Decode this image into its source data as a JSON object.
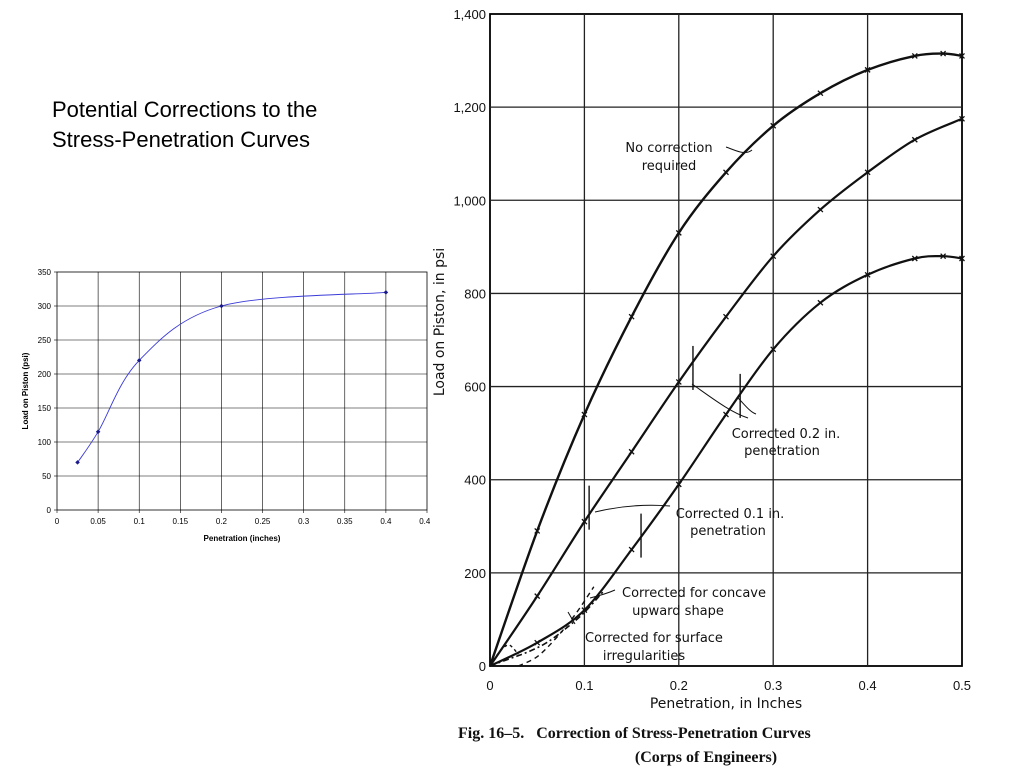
{
  "slide": {
    "title": "Potential Corrections to the\nStress-Penetration Curves"
  },
  "chart_data": [
    {
      "type": "scatter",
      "xlabel": "Penetration (inches)",
      "ylabel": "Load on Piston (psi)",
      "xlim": [
        0,
        0.45
      ],
      "ylim": [
        0,
        350
      ],
      "x_ticks": [
        "0",
        "0.05",
        "0.1",
        "0.15",
        "0.2",
        "0.25",
        "0.3",
        "0.35",
        "0.4",
        "0.45"
      ],
      "y_ticks": [
        "0",
        "50",
        "100",
        "150",
        "200",
        "250",
        "300",
        "350"
      ],
      "grid": true,
      "line_color": "#3a3ad8",
      "marker_color": "#1a1a8c",
      "series": [
        {
          "x": [
            0.025,
            0.05,
            0.1,
            0.2,
            0.4
          ],
          "y": [
            70,
            115,
            220,
            300,
            320
          ]
        }
      ]
    },
    {
      "type": "line",
      "xlabel": "Penetration, in Inches",
      "ylabel": "Load on Piston, in psi",
      "xlim": [
        0,
        0.5
      ],
      "ylim": [
        0,
        1400
      ],
      "x_ticks": [
        "0",
        "0.1",
        "0.2",
        "0.3",
        "0.4",
        "0.5"
      ],
      "y_ticks": [
        "0",
        "200",
        "400",
        "600",
        "800",
        "1,000",
        "1,200",
        "1,400"
      ],
      "grid": true,
      "caption_line1": "Fig. 16–5.   Correction of Stress-Penetration Curves",
      "caption_line2": "(Corps of Engineers)",
      "annotations": [
        "No correction",
        "required",
        "Corrected 0.2 in.",
        "penetration",
        "Corrected 0.1 in.",
        "penetration",
        "Corrected for concave",
        "upward shape",
        "Corrected for surface",
        "irregularities"
      ],
      "series": [
        {
          "x": [
            0,
            0.05,
            0.1,
            0.15,
            0.2,
            0.25,
            0.3,
            0.35,
            0.4,
            0.45,
            0.48,
            0.5
          ],
          "y": [
            0,
            290,
            540,
            750,
            930,
            1060,
            1160,
            1230,
            1280,
            1310,
            1315,
            1310
          ]
        },
        {
          "x": [
            0,
            0.05,
            0.1,
            0.15,
            0.2,
            0.25,
            0.3,
            0.35,
            0.4,
            0.45,
            0.5
          ],
          "y": [
            0,
            150,
            310,
            460,
            610,
            750,
            880,
            980,
            1060,
            1130,
            1175
          ]
        },
        {
          "x": [
            0,
            0.05,
            0.1,
            0.15,
            0.2,
            0.25,
            0.3,
            0.35,
            0.4,
            0.45,
            0.48,
            0.5
          ],
          "y": [
            0,
            50,
            120,
            250,
            390,
            540,
            680,
            780,
            840,
            875,
            880,
            875
          ]
        },
        {
          "x": [
            0,
            0.02,
            0.04,
            0.06,
            0.08,
            0.1,
            0.12
          ],
          "y": [
            0,
            15,
            30,
            50,
            80,
            115,
            160
          ]
        },
        {
          "x": [
            0.03,
            0.05,
            0.07,
            0.09,
            0.11
          ],
          "y": [
            0,
            20,
            60,
            110,
            170
          ]
        },
        {
          "x": [
            0,
            0.01,
            0.02,
            0.03
          ],
          "y": [
            0,
            30,
            45,
            25
          ]
        }
      ],
      "correction_marks": [
        {
          "x": 0.105,
          "y": 340
        },
        {
          "x": 0.215,
          "y": 640
        },
        {
          "x": 0.16,
          "y": 280
        },
        {
          "x": 0.265,
          "y": 580
        }
      ]
    }
  ]
}
